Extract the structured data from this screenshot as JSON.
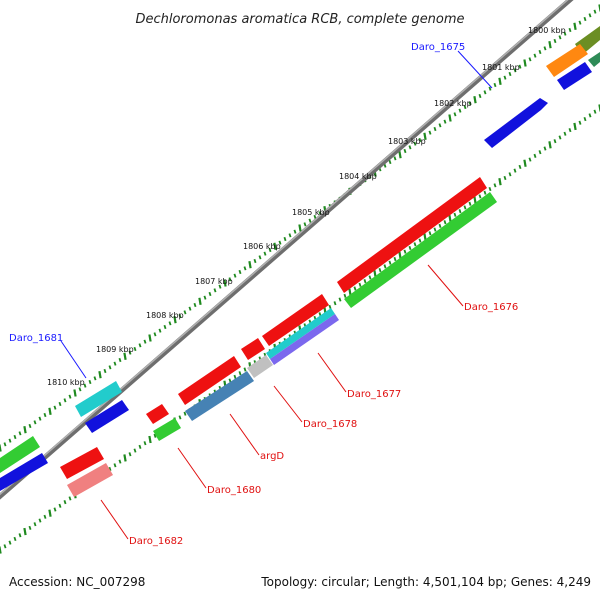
{
  "title": "Dechloromonas aromatica RCB, complete genome",
  "footer": {
    "accession": "Accession: NC_007298",
    "topology": "Topology: circular; Length: 4,501,104 bp; Genes: 4,249"
  },
  "scale_labels": [
    "1800 kbp",
    "1801 kbp",
    "1802 kbp",
    "1803 kbp",
    "1804 kbp",
    "1805 kbp",
    "1806 kbp",
    "1807 kbp",
    "1808 kbp",
    "1809 kbp",
    "1810 kbp"
  ],
  "gene_labels": {
    "daro_1675": "Daro_1675",
    "daro_1676": "Daro_1676",
    "daro_1677": "Daro_1677",
    "daro_1678": "Daro_1678",
    "argd": "argD",
    "daro_1680": "Daro_1680",
    "daro_1681": "Daro_1681",
    "daro_1682": "Daro_1682"
  },
  "colors": {
    "backbone": "#808080",
    "tick_green": "#1f8a1f",
    "label_blue": "#1a1aff",
    "label_red": "#e01010",
    "gene_red": "#ee1111",
    "gene_green": "#33cc33",
    "gene_blue": "#1111dd",
    "gene_cyan": "#22cccc",
    "gene_orange": "#ff8811",
    "gene_olive": "#6b8e23",
    "gene_steel": "#4682b4",
    "gene_gray": "#c0c0c0",
    "gene_pink": "#f08080",
    "gene_slate": "#7b68ee"
  }
}
